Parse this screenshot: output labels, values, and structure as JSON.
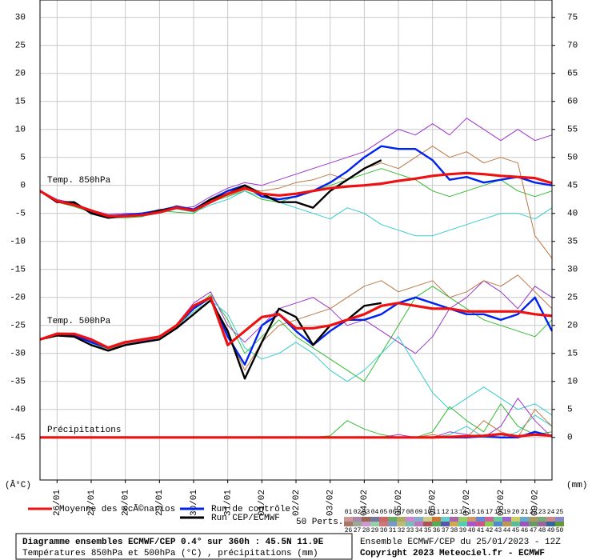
{
  "chart_data": {
    "type": "line",
    "x": [
      0,
      12,
      24,
      36,
      48,
      60,
      72,
      84,
      96,
      108,
      120,
      132,
      144,
      156,
      168,
      180,
      192,
      204,
      216,
      228,
      240,
      252,
      264,
      276,
      288,
      300,
      312,
      324,
      336,
      348,
      360
    ],
    "xlim": [
      0,
      360
    ],
    "xticks": [
      {
        "value": 12,
        "label": "26/01"
      },
      {
        "value": 36,
        "label": "27/01"
      },
      {
        "value": 60,
        "label": "28/01"
      },
      {
        "value": 84,
        "label": "29/01"
      },
      {
        "value": 108,
        "label": "30/01"
      },
      {
        "value": 132,
        "label": "31/01"
      },
      {
        "value": 156,
        "label": "01/02"
      },
      {
        "value": 180,
        "label": "02/02"
      },
      {
        "value": 204,
        "label": "03/02"
      },
      {
        "value": 228,
        "label": "04/02"
      },
      {
        "value": 252,
        "label": "05/02"
      },
      {
        "value": 276,
        "label": "06/02"
      },
      {
        "value": 300,
        "label": "07/02"
      },
      {
        "value": 324,
        "label": "08/02"
      },
      {
        "value": 348,
        "label": "09/02"
      }
    ],
    "ylim": [
      -52.6,
      33.1
    ],
    "yticks": [
      -45,
      -40,
      -35,
      -30,
      -25,
      -20,
      -15,
      -10,
      -5,
      0,
      5,
      10,
      15,
      20,
      25,
      30
    ],
    "y2lim": [
      -7.6,
      78.1
    ],
    "y2ticks": [
      0,
      5,
      10,
      15,
      20,
      25,
      30,
      35,
      40,
      45,
      50,
      55,
      60,
      65,
      70,
      75
    ],
    "y_unit": "(Â°C)",
    "y2_unit": "(mm)",
    "grid": true,
    "annotations": [
      "Temp. 850hPa",
      "Temp. 500hPa",
      "Précipitations"
    ],
    "series": [
      {
        "color": "#33bb33",
        "values": [
          -1,
          -3,
          -3.8,
          -4.8,
          -5.7,
          -5.8,
          -5.6,
          -4.5,
          -4.8,
          -5,
          -3,
          -2,
          -1,
          -2.5,
          -3,
          -2,
          -1,
          0,
          1,
          2,
          3,
          2,
          1,
          -1,
          -2,
          -1,
          0,
          1,
          -1,
          -2,
          -1
        ]
      },
      {
        "color": "#9933cc",
        "values": [
          -1,
          -2.5,
          -3.2,
          -4.4,
          -5.2,
          -5,
          -5,
          -4.3,
          -4.2,
          -3.8,
          -2,
          -0.5,
          0.5,
          0,
          1,
          2,
          3,
          4,
          5,
          6,
          8,
          10,
          9,
          11,
          9,
          12,
          10,
          8,
          10,
          8,
          9
        ]
      },
      {
        "color": "#33cccc",
        "values": [
          -1,
          -2.6,
          -3.5,
          -4.6,
          -5.6,
          -5.5,
          -5.5,
          -5,
          -4.2,
          -4.8,
          -3.5,
          -2.5,
          -1,
          -2,
          -3,
          -4,
          -5,
          -6,
          -4,
          -5,
          -7,
          -8,
          -9,
          -9,
          -8,
          -7,
          -6,
          -5,
          -5,
          -6,
          -4
        ]
      },
      {
        "color": "#bb7744",
        "values": [
          -1,
          -2.9,
          -3.6,
          -4.4,
          -5.4,
          -5.2,
          -5.1,
          -4.7,
          -3.6,
          -4.2,
          -2.8,
          -1.8,
          -0.8,
          -1,
          -0.5,
          0.5,
          1,
          2,
          1,
          3,
          4,
          3,
          5,
          7,
          5,
          6,
          4,
          5,
          4,
          -9,
          -13
        ]
      },
      {
        "color": "#33bb33",
        "values": [
          -27.5,
          -26.8,
          -27,
          -28,
          -29.5,
          -28.5,
          -28,
          -27.5,
          -25.5,
          -22,
          -19.5,
          -24,
          -30,
          -27,
          -24,
          -27,
          -29,
          -31,
          -33,
          -35,
          -30,
          -25,
          -20,
          -18,
          -20,
          -22,
          -24,
          -25,
          -26,
          -27,
          -24
        ]
      },
      {
        "color": "#9933cc",
        "values": [
          -27.5,
          -26.5,
          -26.8,
          -27.8,
          -29,
          -28.2,
          -27.8,
          -27.2,
          -24.8,
          -21,
          -19,
          -25,
          -28,
          -25,
          -22,
          -21,
          -20,
          -22,
          -25,
          -24,
          -26,
          -28,
          -30,
          -27,
          -22,
          -20,
          -17,
          -19,
          -22,
          -18,
          -20
        ]
      },
      {
        "color": "#33cccc",
        "values": [
          -27.5,
          -26.7,
          -26.6,
          -28.2,
          -29.2,
          -28.4,
          -27.6,
          -27,
          -25.2,
          -22.5,
          -20.5,
          -23,
          -29,
          -31,
          -30,
          -28,
          -30,
          -33,
          -35,
          -33,
          -30,
          -27,
          -32,
          -37,
          -40,
          -38,
          -36,
          -38,
          -40,
          -39,
          -41
        ]
      },
      {
        "color": "#bb7744",
        "values": [
          -27.5,
          -26.3,
          -26.4,
          -27.6,
          -28.8,
          -27.8,
          -27.6,
          -27.2,
          -25,
          -21.8,
          -20,
          -26.5,
          -33,
          -28,
          -25,
          -24,
          -23,
          -22,
          -20,
          -18,
          -17,
          -19,
          -18,
          -17,
          -20,
          -19,
          -17,
          -18,
          -16,
          -19,
          -22
        ]
      },
      {
        "color": "#33bb33",
        "axis": "y2",
        "values": [
          0,
          0,
          0,
          0,
          0,
          0,
          0,
          0,
          0,
          0,
          0,
          0,
          0,
          0,
          0,
          0,
          0,
          0.3,
          3,
          1.5,
          0.5,
          0,
          0,
          1,
          5.5,
          3,
          1,
          6,
          2,
          0.5,
          1
        ]
      },
      {
        "color": "#9933cc",
        "axis": "y2",
        "values": [
          0,
          0,
          0,
          0,
          0,
          0,
          0,
          0,
          0,
          0,
          0,
          0,
          0,
          0,
          0,
          0,
          0,
          0,
          0,
          0,
          0,
          0.5,
          0,
          0,
          1,
          0.5,
          0,
          2,
          7,
          3,
          0
        ]
      },
      {
        "color": "#33cccc",
        "axis": "y2",
        "values": [
          0,
          0,
          0,
          0,
          0,
          0,
          0,
          0,
          0,
          0,
          0,
          0,
          0,
          0,
          0,
          0,
          0,
          0,
          0,
          0,
          0,
          0,
          0,
          0,
          0.5,
          2,
          0,
          0,
          1,
          4,
          2
        ]
      },
      {
        "color": "#bb7744",
        "axis": "y2",
        "values": [
          0,
          0,
          0,
          0,
          0,
          0,
          0,
          0,
          0,
          0,
          0,
          0,
          0,
          0,
          0,
          0,
          0,
          0,
          0,
          0,
          0,
          0,
          0,
          0.5,
          0,
          0,
          3,
          1,
          0,
          5,
          2
        ]
      },
      {
        "name": "Run de contrôle",
        "color": "#0022ee",
        "values": [
          -1,
          -2.8,
          -3.3,
          -4.8,
          -5.5,
          -5.3,
          -5,
          -4.5,
          -3.8,
          -4.3,
          -2.5,
          -1,
          0,
          -2,
          -2.5,
          -2,
          -1,
          0.5,
          2.5,
          5,
          7,
          6.5,
          6.5,
          4.5,
          1,
          1.5,
          0.5,
          1,
          1.5,
          0.5,
          0
        ]
      },
      {
        "color": "#0022ee",
        "values": [
          -27.5,
          -26.5,
          -26.8,
          -28,
          -29,
          -28,
          -27.5,
          -27,
          -25,
          -22,
          -20,
          -27,
          -32,
          -25,
          -23,
          -26,
          -28.5,
          -26,
          -24,
          -24,
          -23,
          -21,
          -20,
          -21,
          -22,
          -23,
          -23,
          -24,
          -23,
          -20,
          -26
        ]
      },
      {
        "color": "#0022ee",
        "axis": "y2",
        "values": [
          0,
          0,
          0,
          0,
          0,
          0,
          0,
          0,
          0,
          0,
          0,
          0,
          0,
          0,
          0,
          0,
          0,
          0,
          0,
          0,
          0,
          0,
          0,
          0,
          0,
          0,
          0.2,
          0,
          0,
          1,
          0.2
        ]
      },
      {
        "name": "Run CEP/ECMWF",
        "color": "#000000",
        "values": [
          -1,
          -3,
          -3,
          -5,
          -5.8,
          -5.5,
          -5.3,
          -4.5,
          -4,
          -4.5,
          -2.5,
          -1.5,
          0,
          -1.5,
          -3,
          -3,
          -4,
          -1,
          1,
          3,
          4.5,
          null,
          null,
          null,
          null,
          null,
          null,
          null,
          null,
          null,
          null
        ]
      },
      {
        "color": "#000000",
        "values": [
          -27.5,
          -26.8,
          -27,
          -28.5,
          -29.5,
          -28.5,
          -28,
          -27.5,
          -25.5,
          -23,
          -20.5,
          -26,
          -34.5,
          -28,
          -22,
          -23.5,
          -28.5,
          -25,
          -24,
          -21.5,
          -21,
          null,
          null,
          null,
          null,
          null,
          null,
          null,
          null,
          null,
          null
        ]
      },
      {
        "color": "#000000",
        "axis": "y2",
        "values": [
          0,
          0,
          0,
          0,
          0,
          0,
          0,
          0,
          0,
          0,
          0,
          0,
          0,
          0,
          0,
          0,
          0,
          0,
          0,
          0,
          0,
          null,
          null,
          null,
          null,
          null,
          null,
          null,
          null,
          null,
          null
        ]
      },
      {
        "name": "Moyenne des scÃ©narios",
        "color": "#ee1111",
        "values": [
          -1,
          -2.8,
          -3.5,
          -4.5,
          -5.5,
          -5.5,
          -5.3,
          -4.8,
          -4,
          -4.5,
          -3,
          -1.5,
          -0.5,
          -1.5,
          -1.8,
          -1.5,
          -1,
          -0.5,
          -0.2,
          0,
          0.3,
          0.8,
          1.2,
          1.7,
          2,
          2.2,
          2,
          1.7,
          1.5,
          1.3,
          0.4
        ]
      },
      {
        "color": "#ee1111",
        "values": [
          -27.5,
          -26.5,
          -26.5,
          -27.5,
          -29,
          -28,
          -27.5,
          -27,
          -25,
          -21.5,
          -20,
          -28.5,
          -26,
          -23.5,
          -23,
          -25.5,
          -25.5,
          -25,
          -24,
          -23,
          -21.5,
          -21,
          -21.5,
          -22,
          -22,
          -22.5,
          -22.5,
          -22.5,
          -22.5,
          -23,
          -23.3
        ]
      },
      {
        "color": "#ee1111",
        "axis": "y2",
        "values": [
          0,
          0,
          0,
          0,
          0,
          0,
          0,
          0,
          0,
          0,
          0,
          0,
          0,
          0,
          0,
          0,
          0,
          0,
          0,
          0,
          0,
          0,
          0,
          0,
          0.1,
          0.2,
          0.3,
          0.6,
          0.2,
          0.5,
          0.3
        ]
      }
    ],
    "perturbations": {
      "label": "50 Perts.",
      "ids": [
        "01",
        "02",
        "03",
        "04",
        "05",
        "06",
        "07",
        "08",
        "09",
        "10",
        "11",
        "12",
        "13",
        "14",
        "15",
        "16",
        "17",
        "18",
        "19",
        "20",
        "21",
        "22",
        "23",
        "24",
        "25",
        "26",
        "27",
        "28",
        "29",
        "30",
        "31",
        "32",
        "33",
        "34",
        "35",
        "36",
        "37",
        "38",
        "39",
        "40",
        "41",
        "42",
        "43",
        "44",
        "45",
        "46",
        "47",
        "48",
        "49",
        "50"
      ],
      "colors": [
        "#cc9999",
        "#aa88aa",
        "#996655",
        "#777799",
        "#cc6666",
        "#66aa66",
        "#aaaa66",
        "#cc88cc",
        "#88aacc",
        "#cccc88",
        "#cc7733",
        "#66cccc",
        "#aa66aa",
        "#99cc66",
        "#cc9966",
        "#6688cc",
        "#cc6699",
        "#66cc99",
        "#9966cc",
        "#cccc66",
        "#66aacc",
        "#aa9966",
        "#77aa77",
        "#cc8888",
        "#8888cc",
        "#aa7766",
        "#99aa99",
        "#cc99cc",
        "#99ccaa",
        "#cc7777",
        "#7799cc",
        "#bbbb77",
        "#77bbbb",
        "#bb77bb",
        "#aa5555",
        "#55aa55",
        "#5555aa",
        "#ccaa55",
        "#55ccaa",
        "#aa55cc",
        "#cc5588",
        "#88cc55",
        "#5588cc",
        "#bb9955",
        "#55bb99",
        "#9955bb",
        "#669966",
        "#996699",
        "#336699",
        "#669933"
      ]
    }
  },
  "footer": {
    "title": "Diagramme ensembles ECMWF/CEP 0.4° sur 360h : 45.5N 11.9E",
    "subtitle": "Températures 850hPa et 500hPa (°C) , précipitations (mm)",
    "run": "Ensemble ECMWF/CEP du 25/01/2023 - 12Z",
    "copyright": "Copyright 2023 Meteociel.fr - ECMWF"
  }
}
